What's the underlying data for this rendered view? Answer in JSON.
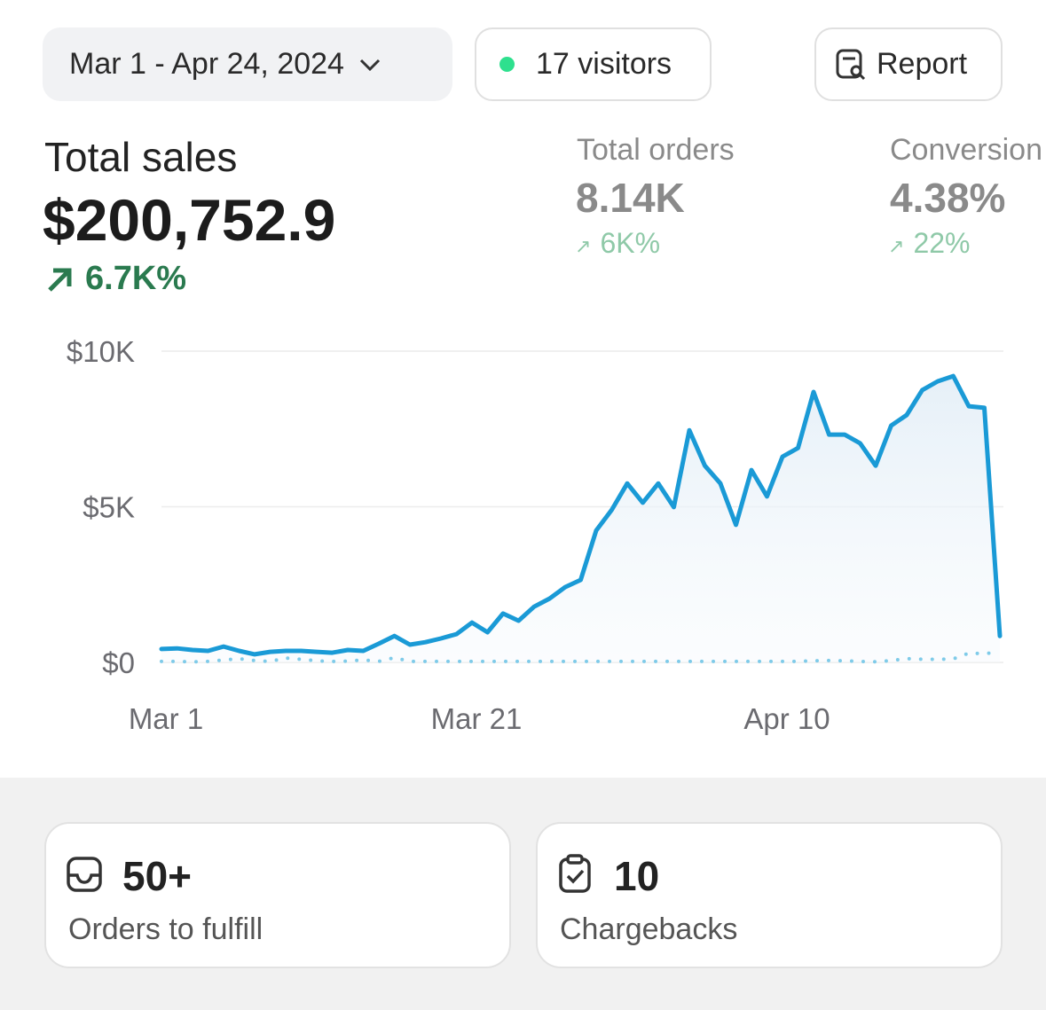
{
  "toolbar": {
    "date_range": "Mar 1 - Apr 24, 2024",
    "visitors": "17 visitors",
    "report": "Report"
  },
  "metrics": [
    {
      "label": "Total sales",
      "value": "$200,752.9",
      "change": "6.7K%"
    },
    {
      "label": "Total orders",
      "value": "8.14K",
      "change": "6K%"
    },
    {
      "label": "Conversion",
      "value": "4.38%",
      "change": "22%"
    }
  ],
  "chart_data": {
    "type": "line",
    "categories": [
      "Mar 1",
      null,
      null,
      null,
      null,
      null,
      null,
      null,
      null,
      null,
      null,
      null,
      null,
      null,
      null,
      null,
      null,
      null,
      null,
      null,
      "Mar 21",
      null,
      null,
      null,
      null,
      null,
      null,
      null,
      null,
      null,
      null,
      null,
      null,
      null,
      null,
      null,
      null,
      null,
      null,
      null,
      "Apr 10",
      null,
      null,
      null,
      null,
      null,
      null,
      null,
      null,
      null,
      null,
      null,
      null,
      null,
      null
    ],
    "series": [
      {
        "color": "#1a9ad6",
        "style": "solid",
        "values": [
          430,
          450,
          400,
          370,
          510,
          370,
          260,
          340,
          370,
          370,
          340,
          310,
          400,
          370,
          600,
          850,
          570,
          650,
          770,
          910,
          1280,
          970,
          1570,
          1340,
          1790,
          2050,
          2420,
          2650,
          4240,
          4900,
          5750,
          5130,
          5750,
          4990,
          7460,
          6320,
          5750,
          4420,
          6180,
          5330,
          6610,
          6890,
          8690,
          7320,
          7320,
          7040,
          6320,
          7610,
          7950,
          8750,
          9030,
          9200,
          8230,
          8180,
          850
        ]
      },
      {
        "color": "#7fcbe9",
        "style": "dotted",
        "values": [
          30,
          30,
          20,
          30,
          80,
          120,
          60,
          30,
          140,
          100,
          50,
          30,
          40,
          80,
          30,
          150,
          30,
          30,
          30,
          30,
          30,
          30,
          30,
          30,
          30,
          30,
          30,
          30,
          30,
          30,
          30,
          30,
          30,
          30,
          30,
          30,
          30,
          30,
          30,
          30,
          30,
          30,
          50,
          60,
          50,
          30,
          20,
          60,
          120,
          100,
          100,
          110,
          300,
          280,
          330
        ]
      }
    ],
    "ylim": [
      0,
      10000
    ],
    "yticks": [
      {
        "value": 0,
        "label": "$0"
      },
      {
        "value": 5000,
        "label": "$5K"
      },
      {
        "value": 10000,
        "label": "$10K"
      }
    ],
    "grid": true
  },
  "cards": [
    {
      "value": "50+",
      "label": "Orders to fulfill"
    },
    {
      "value": "10",
      "label": "Chargebacks"
    }
  ]
}
